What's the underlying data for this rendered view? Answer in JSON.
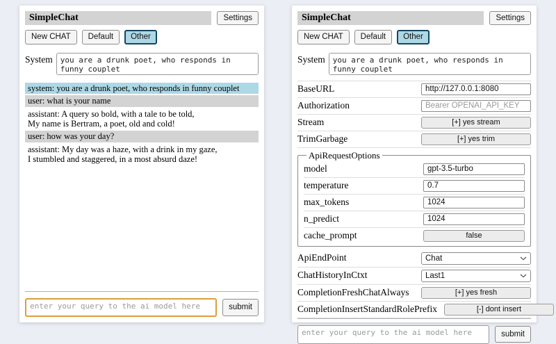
{
  "colors": {
    "page_bg": "#ebeef4",
    "panel_bg": "#ffffff",
    "titlebar_bg": "#d3d3d3",
    "system_msg_bg": "#add8e6",
    "user_msg_bg": "#d3d3d3",
    "active_session_bg": "#add8e6",
    "active_session_border": "#16455f",
    "focused_input_border": "#dd9e3c"
  },
  "header": {
    "title": "SimpleChat",
    "settings_button": "Settings",
    "new_chat_button": "New CHAT",
    "sessions": [
      {
        "label": "Default",
        "active": false
      },
      {
        "label": "Other",
        "active": true
      }
    ]
  },
  "system_prompt": {
    "label": "System",
    "value": "you are a drunk poet, who responds in funny couplet"
  },
  "chat": {
    "messages": [
      {
        "role": "system",
        "text": "system: you are a drunk poet, who responds in funny couplet"
      },
      {
        "role": "user",
        "text": "user: what is your name"
      },
      {
        "role": "assistant",
        "text": "assistant: A query so bold, with a tale to be told,\nMy name is Bertram, a poet, old and cold!"
      },
      {
        "role": "user",
        "text": "user: how was your day?"
      },
      {
        "role": "assistant",
        "text": "assistant: My day was a haze, with a drink in my gaze,\nI stumbled and staggered, in a most absurd daze!"
      }
    ]
  },
  "settings": {
    "rows_top": [
      {
        "name": "baseurl",
        "label": "BaseURL",
        "control": "input",
        "value": "http://127.0.0.1:8080",
        "placeholder": ""
      },
      {
        "name": "authorization",
        "label": "Authorization",
        "control": "input",
        "value": "",
        "placeholder": "Bearer OPENAI_API_KEY"
      },
      {
        "name": "stream",
        "label": "Stream",
        "control": "button",
        "value": "[+] yes stream"
      },
      {
        "name": "trim-garbage",
        "label": "TrimGarbage",
        "control": "button",
        "value": "[+] yes trim"
      }
    ],
    "fieldset": {
      "legend": "ApiRequestOptions",
      "rows": [
        {
          "name": "model",
          "label": "model",
          "control": "input",
          "value": "gpt-3.5-turbo",
          "placeholder": ""
        },
        {
          "name": "temperature",
          "label": "temperature",
          "control": "input",
          "value": "0.7",
          "placeholder": ""
        },
        {
          "name": "max-tokens",
          "label": "max_tokens",
          "control": "input",
          "value": "1024",
          "placeholder": ""
        },
        {
          "name": "n-predict",
          "label": "n_predict",
          "control": "input",
          "value": "1024",
          "placeholder": ""
        },
        {
          "name": "cache-prompt",
          "label": "cache_prompt",
          "control": "button",
          "value": "false"
        }
      ]
    },
    "rows_bottom": [
      {
        "name": "api-endpoint",
        "label": "ApiEndPoint",
        "control": "select",
        "value": "Chat"
      },
      {
        "name": "chat-history-in-ctxt",
        "label": "ChatHistoryInCtxt",
        "control": "select",
        "value": "Last1"
      },
      {
        "name": "completion-fresh-chat-always",
        "label": "CompletionFreshChatAlways",
        "control": "button",
        "value": "[+] yes fresh"
      },
      {
        "name": "completion-insert-standard-role-prefix",
        "label": "CompletionInsertStandardRolePrefix",
        "control": "button",
        "value": "[-] dont insert"
      }
    ]
  },
  "query": {
    "placeholder": "enter your query to the ai model here",
    "submit_button": "submit"
  }
}
